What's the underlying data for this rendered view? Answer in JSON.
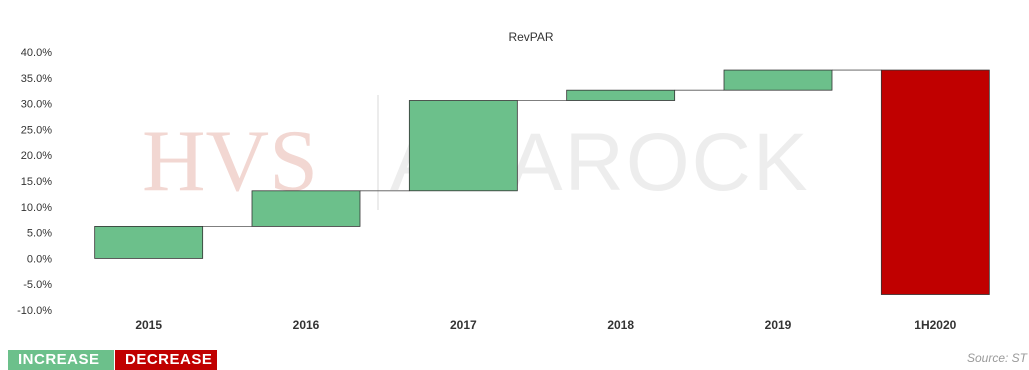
{
  "chart_data": {
    "type": "waterfall",
    "title": "RevPAR",
    "categories": [
      "2015",
      "2016",
      "2017",
      "2018",
      "2019",
      "1H2020"
    ],
    "steps": [
      {
        "category": "2015",
        "start": 0.0,
        "end": 6.2,
        "kind": "increase"
      },
      {
        "category": "2016",
        "start": 6.2,
        "end": 13.1,
        "kind": "increase"
      },
      {
        "category": "2017",
        "start": 13.1,
        "end": 30.6,
        "kind": "increase"
      },
      {
        "category": "2018",
        "start": 30.6,
        "end": 32.6,
        "kind": "increase"
      },
      {
        "category": "2019",
        "start": 32.6,
        "end": 36.5,
        "kind": "increase"
      },
      {
        "category": "1H2020",
        "start": 36.5,
        "end": -7.0,
        "kind": "decrease"
      }
    ],
    "ylim": [
      -10,
      40
    ],
    "yticks": [
      -10,
      -5,
      0,
      5,
      10,
      15,
      20,
      25,
      30,
      35,
      40
    ],
    "ytick_labels": [
      "-10.0%",
      "-5.0%",
      "0.0%",
      "5.0%",
      "10.0%",
      "15.0%",
      "20.0%",
      "25.0%",
      "30.0%",
      "35.0%",
      "40.0%"
    ],
    "grid": false,
    "colors": {
      "increase": "#6cc08b",
      "decrease": "#c00000",
      "connector": "#555555"
    }
  },
  "watermark": {
    "left": "HVS",
    "right": "ANAROCK"
  },
  "legend": {
    "increase": "INCREASE",
    "decrease": "DECREASE"
  },
  "source": "Source: ST"
}
